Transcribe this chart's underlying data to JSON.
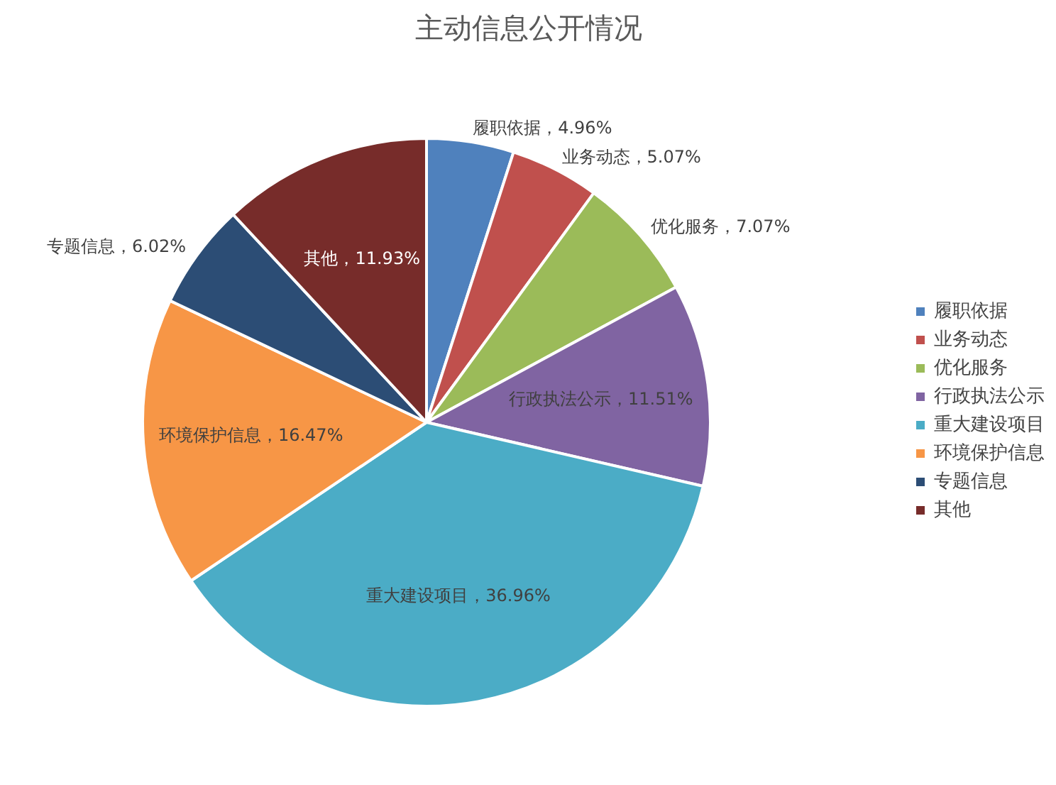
{
  "chart_data": {
    "type": "pie",
    "title": "主动信息公开情况",
    "categories": [
      "履职依据",
      "业务动态",
      "优化服务",
      "行政执法公示",
      "重大建设项目",
      "环境保护信息",
      "专题信息",
      "其他"
    ],
    "values": [
      4.96,
      5.07,
      7.07,
      11.51,
      36.96,
      16.47,
      6.02,
      11.93
    ],
    "colors": [
      "#4f81bd",
      "#c0504d",
      "#9bbb59",
      "#8064a2",
      "#4bacc6",
      "#f79646",
      "#2c4d75",
      "#772c2a"
    ],
    "value_labels": [
      "履职依据，4.96%",
      "业务动态，5.07%",
      "优化服务，7.07%",
      "行政执法公示，11.51%",
      "重大建设项目，36.96%",
      "环境保护信息，16.47%",
      "专题信息，6.02%",
      "其他，11.93%"
    ],
    "legend": "right"
  }
}
